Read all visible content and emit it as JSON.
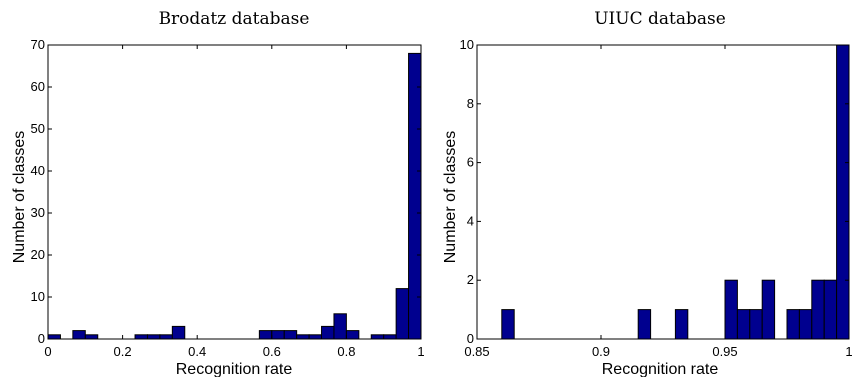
{
  "chart_data": [
    {
      "type": "bar",
      "title": "Brodatz database",
      "xlabel": "Recognition rate",
      "ylabel": "Number of classes",
      "xlim": [
        0,
        1
      ],
      "ylim": [
        0,
        70
      ],
      "xticks": [
        "0",
        "0.2",
        "0.4",
        "0.6",
        "0.8",
        "1"
      ],
      "yticks": [
        "0",
        "10",
        "20",
        "30",
        "40",
        "50",
        "60",
        "70"
      ],
      "bar_width": 0.0333,
      "bars": [
        {
          "x": 0.0167,
          "value": 1
        },
        {
          "x": 0.0833,
          "value": 2
        },
        {
          "x": 0.1167,
          "value": 1
        },
        {
          "x": 0.25,
          "value": 1
        },
        {
          "x": 0.2833,
          "value": 1
        },
        {
          "x": 0.3167,
          "value": 1
        },
        {
          "x": 0.35,
          "value": 3
        },
        {
          "x": 0.5833,
          "value": 2
        },
        {
          "x": 0.6167,
          "value": 2
        },
        {
          "x": 0.65,
          "value": 2
        },
        {
          "x": 0.6833,
          "value": 1
        },
        {
          "x": 0.7167,
          "value": 1
        },
        {
          "x": 0.75,
          "value": 3
        },
        {
          "x": 0.7833,
          "value": 6
        },
        {
          "x": 0.8167,
          "value": 2
        },
        {
          "x": 0.8833,
          "value": 1
        },
        {
          "x": 0.9167,
          "value": 1
        },
        {
          "x": 0.95,
          "value": 12
        },
        {
          "x": 0.9833,
          "value": 68
        }
      ]
    },
    {
      "type": "bar",
      "title": "UIUC database",
      "xlabel": "Recognition rate",
      "ylabel": "Number of classes",
      "xlim": [
        0.85,
        1
      ],
      "ylim": [
        0,
        10
      ],
      "xticks": [
        "0.85",
        "0.9",
        "0.95",
        "1"
      ],
      "yticks": [
        "0",
        "2",
        "4",
        "6",
        "8",
        "10"
      ],
      "bar_width": 0.005,
      "bars": [
        {
          "x": 0.8625,
          "value": 1
        },
        {
          "x": 0.9175,
          "value": 1
        },
        {
          "x": 0.9325,
          "value": 1
        },
        {
          "x": 0.9525,
          "value": 2
        },
        {
          "x": 0.9575,
          "value": 1
        },
        {
          "x": 0.9625,
          "value": 1
        },
        {
          "x": 0.9675,
          "value": 2
        },
        {
          "x": 0.9775,
          "value": 1
        },
        {
          "x": 0.9825,
          "value": 1
        },
        {
          "x": 0.9875,
          "value": 2
        },
        {
          "x": 0.9925,
          "value": 2
        },
        {
          "x": 0.9975,
          "value": 10
        }
      ]
    }
  ]
}
